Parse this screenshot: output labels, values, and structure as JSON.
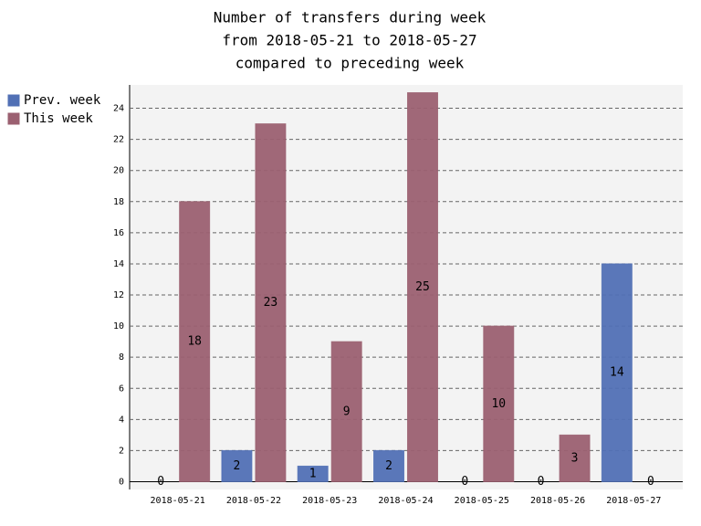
{
  "chart_data": {
    "type": "bar",
    "title": [
      "Number of transfers during week",
      "from 2018-05-21 to 2018-05-27",
      "compared to preceding week"
    ],
    "categories": [
      "2018-05-21",
      "2018-05-22",
      "2018-05-23",
      "2018-05-24",
      "2018-05-25",
      "2018-05-26",
      "2018-05-27"
    ],
    "series": [
      {
        "name": "Prev. week",
        "color": "#5170b5",
        "values": [
          0,
          2,
          1,
          2,
          0,
          0,
          14
        ]
      },
      {
        "name": "This week",
        "color": "#9b6071",
        "values": [
          18,
          23,
          9,
          25,
          10,
          3,
          0
        ]
      }
    ],
    "ylim": [
      -0.5,
      25.5
    ],
    "yticks": [
      0,
      2,
      4,
      6,
      8,
      10,
      12,
      14,
      16,
      18,
      20,
      22,
      24
    ],
    "grid": true
  }
}
